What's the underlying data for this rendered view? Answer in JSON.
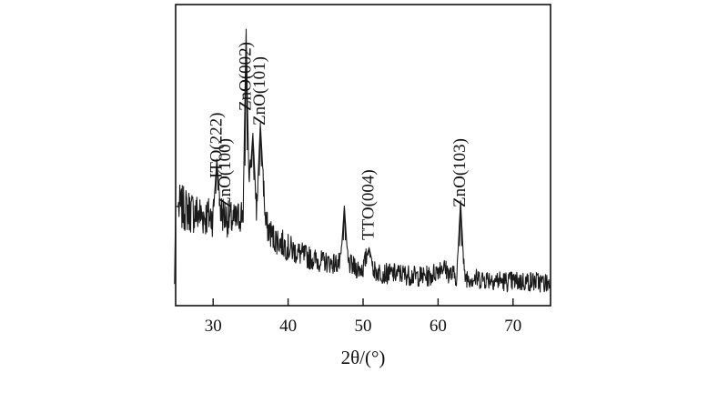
{
  "chart_data": {
    "type": "line",
    "title": "",
    "xlabel": "2θ/(°)",
    "ylabel": "",
    "xlim": [
      25,
      75
    ],
    "xticks": [
      30,
      40,
      50,
      60,
      70
    ],
    "grid": false,
    "line_color": "#1a1a1a",
    "series": [
      {
        "x": [
          25,
          26,
          27,
          28,
          29,
          30,
          30.5,
          31,
          32,
          33,
          34,
          34.4,
          34.8,
          35.3,
          35.8,
          36.3,
          37,
          38,
          40,
          42,
          44,
          46,
          47,
          47.5,
          48,
          49,
          50,
          50.8,
          51.5,
          53,
          55,
          57,
          59,
          60.5,
          61.5,
          62.5,
          63,
          63.5,
          65,
          67,
          69,
          71,
          73,
          75
        ],
        "y": [
          0.32,
          0.31,
          0.3,
          0.29,
          0.28,
          0.28,
          0.5,
          0.3,
          0.27,
          0.26,
          0.3,
          1.0,
          0.38,
          0.6,
          0.3,
          0.64,
          0.25,
          0.2,
          0.16,
          0.13,
          0.11,
          0.1,
          0.1,
          0.32,
          0.1,
          0.08,
          0.08,
          0.16,
          0.07,
          0.06,
          0.06,
          0.05,
          0.05,
          0.09,
          0.06,
          0.05,
          0.34,
          0.05,
          0.04,
          0.04,
          0.03,
          0.03,
          0.03,
          0.02
        ]
      }
    ],
    "annotations": [
      {
        "text": "ITO(222)",
        "x": 30.5
      },
      {
        "text": "ZnO(100)",
        "x": 31.7
      },
      {
        "text": "ZnO(002)",
        "x": 34.4
      },
      {
        "text": "ZnO(101)",
        "x": 36.3
      },
      {
        "text": "TTO(004)",
        "x": 50.8
      },
      {
        "text": "ZnO(103)",
        "x": 63.0
      }
    ]
  }
}
